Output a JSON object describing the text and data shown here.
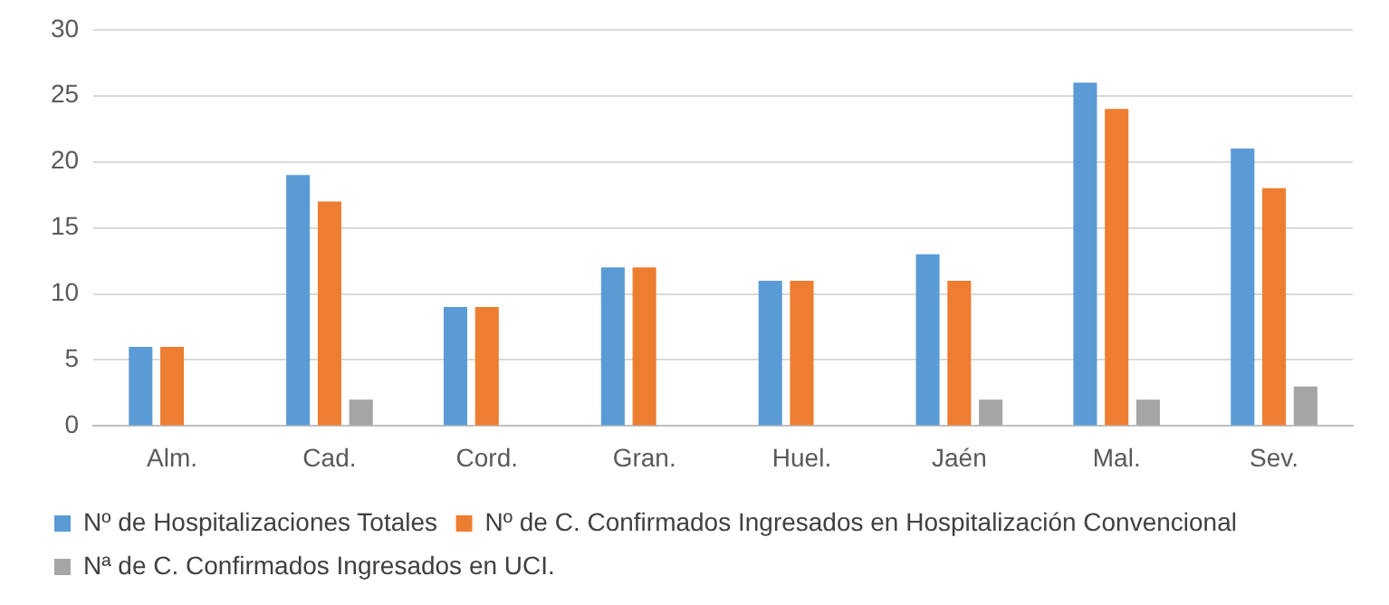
{
  "chart_data": {
    "type": "bar",
    "categories": [
      "Alm.",
      "Cad.",
      "Cord.",
      "Gran.",
      "Huel.",
      "Jaén",
      "Mal.",
      "Sev."
    ],
    "series": [
      {
        "name": "Nº de Hospitalizaciones Totales",
        "color": "#5b9bd5",
        "values": [
          6,
          19,
          9,
          12,
          11,
          13,
          26,
          21
        ]
      },
      {
        "name": "Nº de C. Confirmados Ingresados en Hospitalización Convencional",
        "color": "#ed7d31",
        "values": [
          6,
          17,
          9,
          12,
          11,
          11,
          24,
          18
        ]
      },
      {
        "name": "Nª de C. Confirmados Ingresados en UCI.",
        "color": "#a5a5a5",
        "values": [
          0,
          2,
          0,
          0,
          0,
          2,
          2,
          3
        ]
      }
    ],
    "ylim": [
      0,
      30
    ],
    "yticks": [
      0,
      5,
      10,
      15,
      20,
      25,
      30
    ],
    "grid": "y",
    "legend": "bottom"
  }
}
